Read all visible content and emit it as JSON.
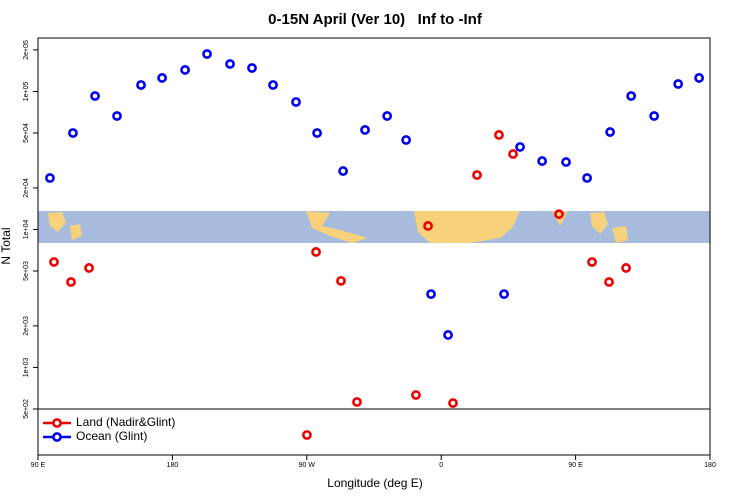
{
  "chart_data": {
    "type": "scatter",
    "title": "0-15N April (Ver 10)   Inf to -Inf",
    "xlabel": "Longitude (deg E)",
    "ylabel": "N Total",
    "xlim": [
      90,
      540
    ],
    "xticks": [
      {
        "value": 90,
        "label": "90 E"
      },
      180,
      {
        "value": 270,
        "label": "90 W"
      },
      {
        "value": 360,
        "label": "0"
      },
      {
        "value": 450,
        "label": "90 E"
      },
      {
        "value": 540,
        "label": "180"
      }
    ],
    "ylim": [
      232,
      244000
    ],
    "log_y": true,
    "yticks": [
      {
        "value": 500,
        "label": "5e+02"
      },
      {
        "value": 1000,
        "label": "1e+03"
      },
      {
        "value": 2000,
        "label": "2e+03"
      },
      {
        "value": 5000,
        "label": "5e+03"
      },
      {
        "value": 10000,
        "label": "1e+04"
      },
      {
        "value": 20000,
        "label": "2e+04"
      },
      {
        "value": 50000,
        "label": "5e+04"
      },
      {
        "value": 100000,
        "label": "1e+05"
      },
      {
        "value": 200000,
        "label": "2e+05"
      }
    ],
    "series": [
      {
        "name": "Land (Nadir&Glint)",
        "color": "#ee0000",
        "x": [
          100.7,
          112.1,
          124.2,
          270.1,
          276.2,
          292.9,
          303.6,
          343.1,
          351.2,
          367.9,
          384.0,
          398.7,
          408.1,
          438.9,
          461.0,
          472.4,
          483.8
        ],
        "values": [
          5810,
          4160,
          5260,
          324,
          6870,
          4240,
          562,
          631,
          10600,
          552,
          24800,
          48400,
          35200,
          12900,
          5810,
          4160,
          5260
        ]
      },
      {
        "name": "Ocean (Glint)",
        "color": "#0000ee",
        "x": [
          98.0,
          113.4,
          128.2,
          142.9,
          159.0,
          173.1,
          188.5,
          203.2,
          218.6,
          233.3,
          247.4,
          262.8,
          276.9,
          294.3,
          309.0,
          323.8,
          336.5,
          353.2,
          364.6,
          402.1,
          412.8,
          427.6,
          443.6,
          457.7,
          473.1,
          487.2,
          502.6,
          518.7,
          532.7
        ],
        "values": [
          23600,
          50000,
          92700,
          66400,
          111400,
          125300,
          143200,
          186800,
          158100,
          147900,
          111400,
          83900,
          50000,
          26500,
          52600,
          66400,
          44500,
          3400,
          1720,
          3400,
          39600,
          31300,
          30800,
          23600,
          50800,
          92700,
          66400,
          113200,
          125300
        ]
      }
    ]
  }
}
